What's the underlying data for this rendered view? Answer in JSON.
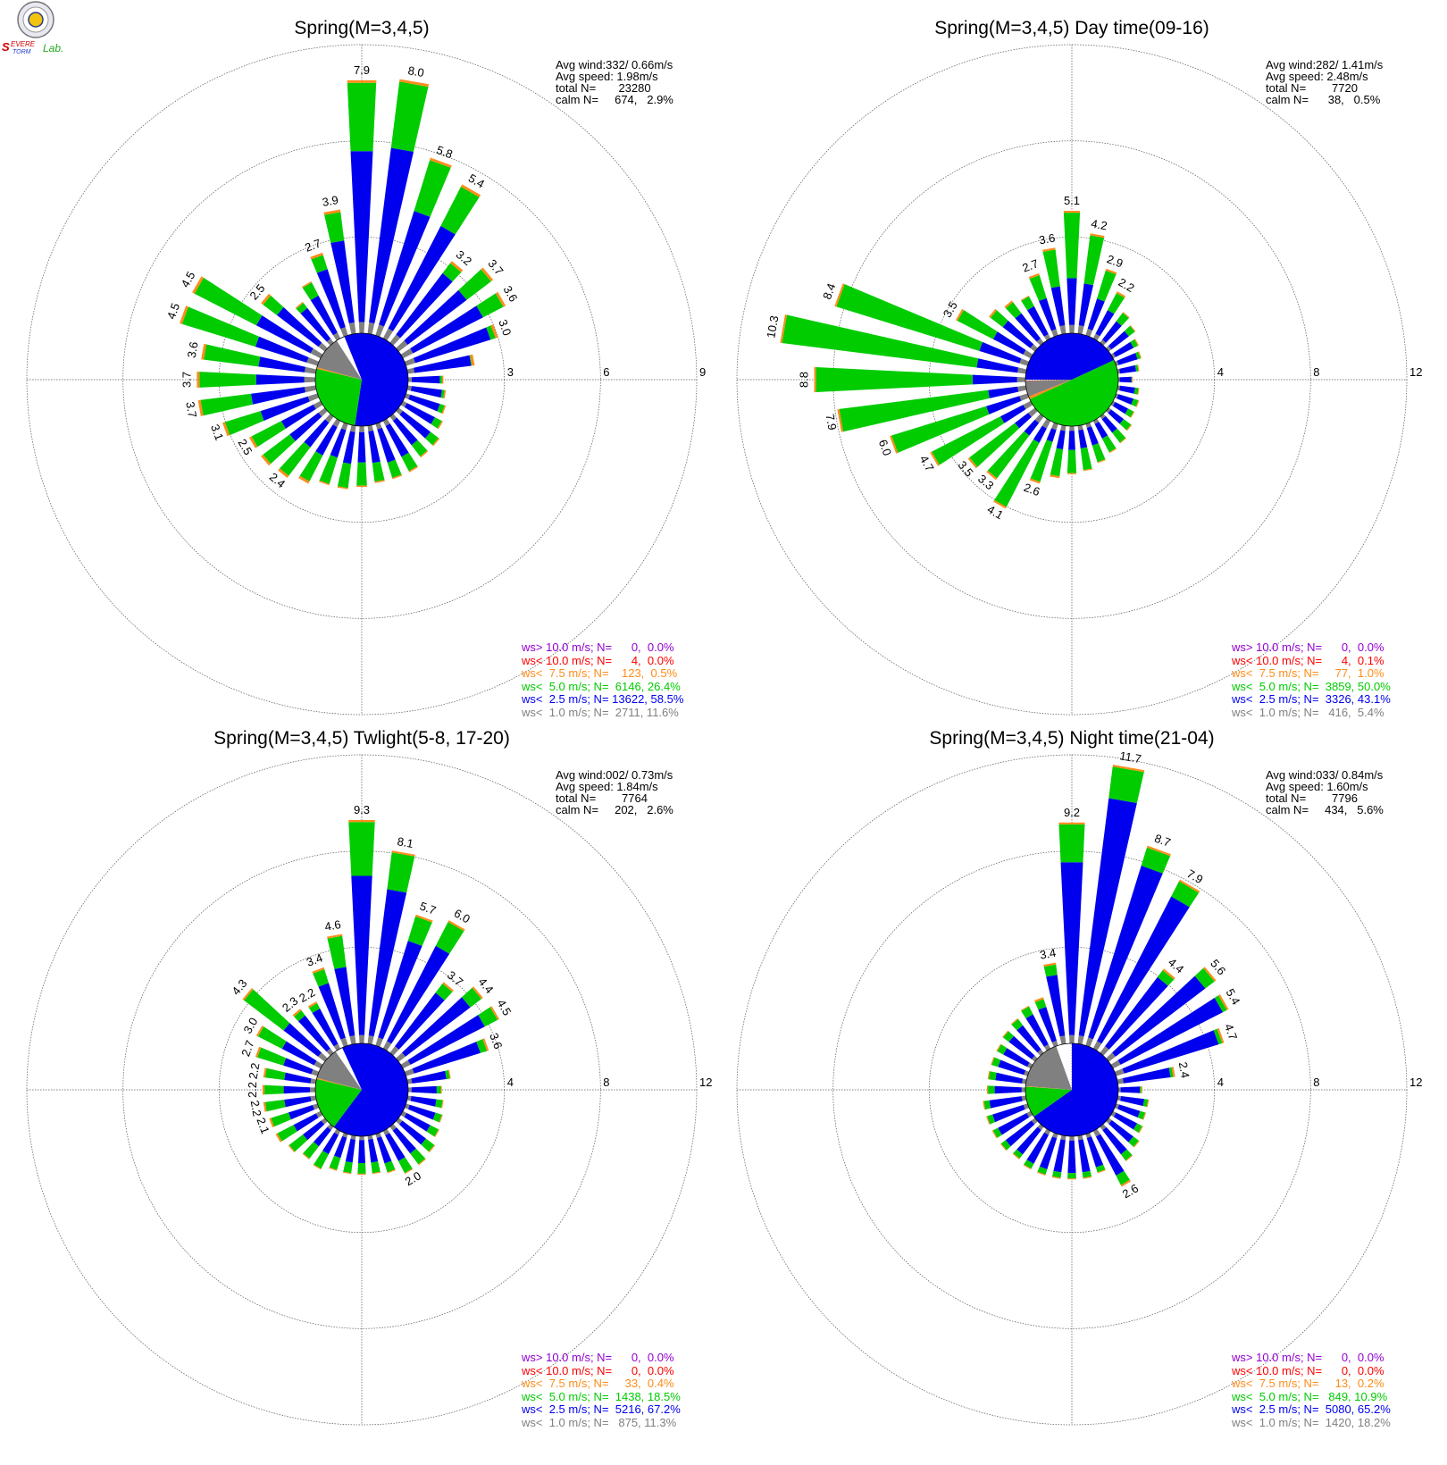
{
  "colors": {
    "gt10": "#9400d3",
    "lt10": "#ff0000",
    "lt7_5": "#ff8c1a",
    "lt5": "#00cc00",
    "lt2_5": "#0000ee",
    "lt1": "#808080",
    "grid": "#555555"
  },
  "logo": {
    "text": "Severe Storm Lab."
  },
  "chart_data": [
    {
      "type": "windrose",
      "title": "Spring(M=3,4,5)",
      "rmax": 9,
      "ring_labels": [
        "3",
        "6",
        "9"
      ],
      "stats": {
        "avg_wind": "Avg wind:332/ 0.66m/s",
        "avg_speed": "Avg speed: 1.98m/s",
        "total": "total N=       23280",
        "calm": "calm N=     674,   2.9%"
      },
      "center_pie": [
        {
          "cls": "lt2_5",
          "frac": 0.585
        },
        {
          "cls": "lt5",
          "frac": 0.264
        },
        {
          "cls": "lt7_5",
          "frac": 0.005
        },
        {
          "cls": "lt1",
          "frac": 0.116
        },
        {
          "cls": "lt10",
          "frac": 0.0
        },
        {
          "cls": "gt10",
          "frac": 0.0
        }
      ],
      "pie_start_deg": 338,
      "legend": [
        {
          "cls": "gt10",
          "text": "ws> 10.0 m/s; N=      0,  0.0%"
        },
        {
          "cls": "lt10",
          "text": "ws< 10.0 m/s; N=      4,  0.0%"
        },
        {
          "cls": "lt7_5",
          "text": "ws<  7.5 m/s; N=    123,  0.5%"
        },
        {
          "cls": "lt5",
          "text": "ws<  5.0 m/s; N=  6146, 26.4%"
        },
        {
          "cls": "lt2_5",
          "text": "ws<  2.5 m/s; N= 13622, 58.5%"
        },
        {
          "cls": "lt1",
          "text": "ws<  1.0 m/s; N=  2711, 11.6%"
        }
      ],
      "directions_deg": [
        0,
        10,
        20,
        30,
        40,
        50,
        60,
        70,
        80,
        90,
        100,
        110,
        120,
        130,
        140,
        150,
        160,
        170,
        180,
        190,
        200,
        210,
        220,
        230,
        240,
        250,
        260,
        270,
        280,
        290,
        300,
        310,
        320,
        330,
        340,
        350
      ],
      "totals": [
        7.9,
        8.0,
        5.8,
        5.4,
        3.2,
        3.7,
        3.6,
        3.0,
        2.1,
        1.1,
        1.2,
        1.3,
        1.4,
        1.6,
        1.6,
        1.8,
        1.8,
        1.8,
        1.9,
        2.0,
        2.0,
        2.2,
        2.4,
        2.5,
        2.5,
        3.1,
        3.7,
        3.7,
        3.6,
        4.5,
        4.5,
        2.5,
        1.6,
        2.0,
        2.7,
        3.9
      ],
      "blue_frac": [
        0.72,
        0.73,
        0.7,
        0.73,
        0.85,
        0.72,
        0.78,
        0.92,
        0.95,
        0.9,
        0.9,
        0.85,
        0.8,
        0.78,
        0.7,
        0.7,
        0.7,
        0.65,
        0.6,
        0.6,
        0.55,
        0.55,
        0.5,
        0.55,
        0.55,
        0.6,
        0.55,
        0.5,
        0.5,
        0.45,
        0.5,
        0.75,
        0.85,
        0.75,
        0.8,
        0.75
      ],
      "labeled_totals": [
        7.9,
        8.0,
        5.8,
        5.4,
        3.2,
        3.7,
        3.6,
        3.0,
        null,
        null,
        null,
        null,
        null,
        null,
        null,
        null,
        null,
        null,
        null,
        null,
        null,
        null,
        2.4,
        null,
        2.5,
        3.1,
        3.7,
        3.7,
        3.6,
        4.5,
        4.5,
        2.5,
        null,
        null,
        2.7,
        3.9
      ]
    },
    {
      "type": "windrose",
      "title": "Spring(M=3,4,5) Day time(09-16)",
      "rmax": 12,
      "ring_labels": [
        "4",
        "8",
        "12"
      ],
      "stats": {
        "avg_wind": "Avg wind:282/ 1.41m/s",
        "avg_speed": "Avg speed: 2.48m/s",
        "total": "total N=        7720",
        "calm": "calm N=      38,   0.5%"
      },
      "center_pie": [
        {
          "cls": "lt2_5",
          "frac": 0.431
        },
        {
          "cls": "lt5",
          "frac": 0.5
        },
        {
          "cls": "lt7_5",
          "frac": 0.01
        },
        {
          "cls": "lt1",
          "frac": 0.054
        },
        {
          "cls": "lt10",
          "frac": 0.001
        },
        {
          "cls": "gt10",
          "frac": 0.0
        }
      ],
      "pie_start_deg": 270,
      "legend": [
        {
          "cls": "gt10",
          "text": "ws> 10.0 m/s; N=      0,  0.0%"
        },
        {
          "cls": "lt10",
          "text": "ws< 10.0 m/s; N=      4,  0.1%"
        },
        {
          "cls": "lt7_5",
          "text": "ws<  7.5 m/s; N=     77,  1.0%"
        },
        {
          "cls": "lt5",
          "text": "ws<  5.0 m/s; N=  3859, 50.0%"
        },
        {
          "cls": "lt2_5",
          "text": "ws<  2.5 m/s; N=  3326, 43.1%"
        },
        {
          "cls": "lt1",
          "text": "ws<  1.0 m/s; N=   416,  5.4%"
        }
      ],
      "directions_deg": [
        0,
        10,
        20,
        30,
        40,
        50,
        60,
        70,
        80,
        90,
        100,
        110,
        120,
        130,
        140,
        150,
        160,
        170,
        180,
        190,
        200,
        210,
        220,
        230,
        240,
        250,
        260,
        270,
        280,
        290,
        300,
        310,
        320,
        330,
        340,
        350
      ],
      "totals": [
        5.1,
        4.2,
        2.9,
        2.2,
        1.6,
        1.4,
        1.2,
        1.1,
        0.9,
        0.6,
        0.9,
        1.0,
        1.0,
        1.2,
        1.4,
        1.5,
        1.7,
        1.9,
        2.0,
        2.2,
        2.6,
        4.1,
        3.3,
        3.5,
        4.7,
        6.0,
        7.9,
        8.8,
        10.3,
        8.4,
        3.5,
        2.4,
        2.2,
        2.0,
        2.7,
        3.6
      ],
      "blue_frac": [
        0.45,
        0.5,
        0.55,
        0.6,
        0.7,
        0.75,
        0.8,
        0.85,
        0.85,
        0.9,
        0.8,
        0.75,
        0.7,
        0.65,
        0.6,
        0.55,
        0.55,
        0.5,
        0.5,
        0.45,
        0.3,
        0.25,
        0.3,
        0.3,
        0.3,
        0.3,
        0.2,
        0.25,
        0.2,
        0.25,
        0.5,
        0.7,
        0.7,
        0.75,
        0.6,
        0.55
      ],
      "labeled_totals": [
        5.1,
        4.2,
        2.9,
        2.2,
        null,
        null,
        null,
        null,
        null,
        null,
        null,
        null,
        null,
        null,
        null,
        null,
        null,
        null,
        null,
        null,
        2.6,
        4.1,
        3.3,
        3.5,
        4.7,
        6.0,
        7.9,
        8.8,
        10.3,
        8.4,
        3.5,
        null,
        null,
        null,
        2.7,
        3.6
      ]
    },
    {
      "type": "windrose",
      "title": "Spring(M=3,4,5) Twlight(5-8, 17-20)",
      "rmax": 12,
      "ring_labels": [
        "4",
        "8",
        "12"
      ],
      "stats": {
        "avg_wind": "Avg wind:002/ 0.73m/s",
        "avg_speed": "Avg speed: 1.84m/s",
        "total": "total N=        7764",
        "calm": "calm N=     202,   2.6%"
      },
      "center_pie": [
        {
          "cls": "lt2_5",
          "frac": 0.672
        },
        {
          "cls": "lt5",
          "frac": 0.185
        },
        {
          "cls": "lt7_5",
          "frac": 0.004
        },
        {
          "cls": "lt1",
          "frac": 0.113
        },
        {
          "cls": "lt10",
          "frac": 0.0
        },
        {
          "cls": "gt10",
          "frac": 0.0
        }
      ],
      "pie_start_deg": 335,
      "legend": [
        {
          "cls": "gt10",
          "text": "ws> 10.0 m/s; N=      0,  0.0%"
        },
        {
          "cls": "lt10",
          "text": "ws< 10.0 m/s; N=      0,  0.0%"
        },
        {
          "cls": "lt7_5",
          "text": "ws<  7.5 m/s; N=     33,  0.4%"
        },
        {
          "cls": "lt5",
          "text": "ws<  5.0 m/s; N=  1438, 18.5%"
        },
        {
          "cls": "lt2_5",
          "text": "ws<  2.5 m/s; N=  5216, 67.2%"
        },
        {
          "cls": "lt1",
          "text": "ws<  1.0 m/s; N=   875, 11.3%"
        }
      ],
      "directions_deg": [
        0,
        10,
        20,
        30,
        40,
        50,
        60,
        70,
        80,
        90,
        100,
        110,
        120,
        130,
        140,
        150,
        160,
        170,
        180,
        190,
        200,
        210,
        220,
        230,
        240,
        250,
        260,
        270,
        280,
        290,
        300,
        310,
        320,
        330,
        340,
        350
      ],
      "totals": [
        9.3,
        8.1,
        5.7,
        6.0,
        3.7,
        4.4,
        4.5,
        3.6,
        1.8,
        1.4,
        1.5,
        1.6,
        1.7,
        1.9,
        2.0,
        2.0,
        1.7,
        1.6,
        1.6,
        1.6,
        1.6,
        1.8,
        1.7,
        1.9,
        2.1,
        2.1,
        2.2,
        2.2,
        2.2,
        2.7,
        3.0,
        4.3,
        2.3,
        2.2,
        3.4,
        4.6
      ],
      "blue_frac": [
        0.75,
        0.8,
        0.8,
        0.8,
        0.85,
        0.85,
        0.85,
        0.9,
        0.9,
        0.85,
        0.8,
        0.8,
        0.75,
        0.75,
        0.7,
        0.7,
        0.75,
        0.7,
        0.7,
        0.7,
        0.65,
        0.6,
        0.6,
        0.6,
        0.6,
        0.6,
        0.6,
        0.6,
        0.6,
        0.55,
        0.6,
        0.5,
        0.85,
        0.85,
        0.8,
        0.7
      ],
      "labeled_totals": [
        9.3,
        8.1,
        5.7,
        6.0,
        3.7,
        4.4,
        4.5,
        3.6,
        null,
        null,
        null,
        null,
        null,
        null,
        null,
        2.0,
        null,
        null,
        null,
        null,
        null,
        null,
        null,
        null,
        null,
        2.1,
        2.2,
        2.2,
        2.2,
        2.7,
        3.0,
        4.3,
        2.3,
        2.2,
        3.4,
        4.6
      ]
    },
    {
      "type": "windrose",
      "title": "Spring(M=3,4,5) Night time(21-04)",
      "rmax": 12,
      "ring_labels": [
        "4",
        "8",
        "12"
      ],
      "stats": {
        "avg_wind": "Avg wind:033/ 0.84m/s",
        "avg_speed": "Avg speed: 1.60m/s",
        "total": "total N=        7796",
        "calm": "calm N=     434,   5.6%"
      },
      "center_pie": [
        {
          "cls": "lt2_5",
          "frac": 0.652
        },
        {
          "cls": "lt5",
          "frac": 0.109
        },
        {
          "cls": "lt7_5",
          "frac": 0.002
        },
        {
          "cls": "lt1",
          "frac": 0.182
        },
        {
          "cls": "lt10",
          "frac": 0.0
        },
        {
          "cls": "gt10",
          "frac": 0.0
        }
      ],
      "pie_start_deg": 0,
      "legend": [
        {
          "cls": "gt10",
          "text": "ws> 10.0 m/s; N=      0,  0.0%"
        },
        {
          "cls": "lt10",
          "text": "ws< 10.0 m/s; N=      0,  0.0%"
        },
        {
          "cls": "lt7_5",
          "text": "ws<  7.5 m/s; N=     13,  0.2%"
        },
        {
          "cls": "lt5",
          "text": "ws<  5.0 m/s; N=   849, 10.9%"
        },
        {
          "cls": "lt2_5",
          "text": "ws<  2.5 m/s; N=  5080, 65.2%"
        },
        {
          "cls": "lt1",
          "text": "ws<  1.0 m/s; N=  1420, 18.2%"
        }
      ],
      "directions_deg": [
        0,
        10,
        20,
        30,
        40,
        50,
        60,
        70,
        80,
        90,
        100,
        110,
        120,
        130,
        140,
        150,
        160,
        170,
        180,
        190,
        200,
        210,
        220,
        230,
        240,
        250,
        260,
        270,
        280,
        290,
        300,
        310,
        320,
        330,
        340,
        350
      ],
      "totals": [
        9.2,
        11.7,
        8.7,
        7.9,
        4.4,
        5.6,
        5.4,
        4.7,
        2.4,
        1.0,
        1.3,
        1.3,
        1.4,
        1.6,
        1.8,
        2.6,
        1.7,
        1.8,
        1.8,
        1.8,
        1.8,
        1.8,
        1.7,
        1.8,
        1.8,
        1.8,
        1.8,
        1.6,
        1.6,
        1.6,
        1.6,
        1.7,
        1.8,
        2.0,
        2.1,
        3.4
      ],
      "blue_frac": [
        0.82,
        0.88,
        0.9,
        0.9,
        0.9,
        0.9,
        0.95,
        0.95,
        0.92,
        0.9,
        0.85,
        0.8,
        0.8,
        0.8,
        0.8,
        0.8,
        0.85,
        0.85,
        0.85,
        0.85,
        0.85,
        0.85,
        0.85,
        0.85,
        0.85,
        0.85,
        0.85,
        0.8,
        0.8,
        0.8,
        0.8,
        0.8,
        0.8,
        0.8,
        0.8,
        0.85
      ],
      "labeled_totals": [
        9.2,
        11.7,
        8.7,
        7.9,
        4.4,
        5.6,
        5.4,
        4.7,
        2.4,
        null,
        null,
        null,
        null,
        null,
        null,
        2.6,
        null,
        null,
        null,
        null,
        null,
        null,
        null,
        null,
        null,
        null,
        null,
        null,
        null,
        null,
        null,
        null,
        null,
        null,
        null,
        3.4
      ]
    }
  ]
}
